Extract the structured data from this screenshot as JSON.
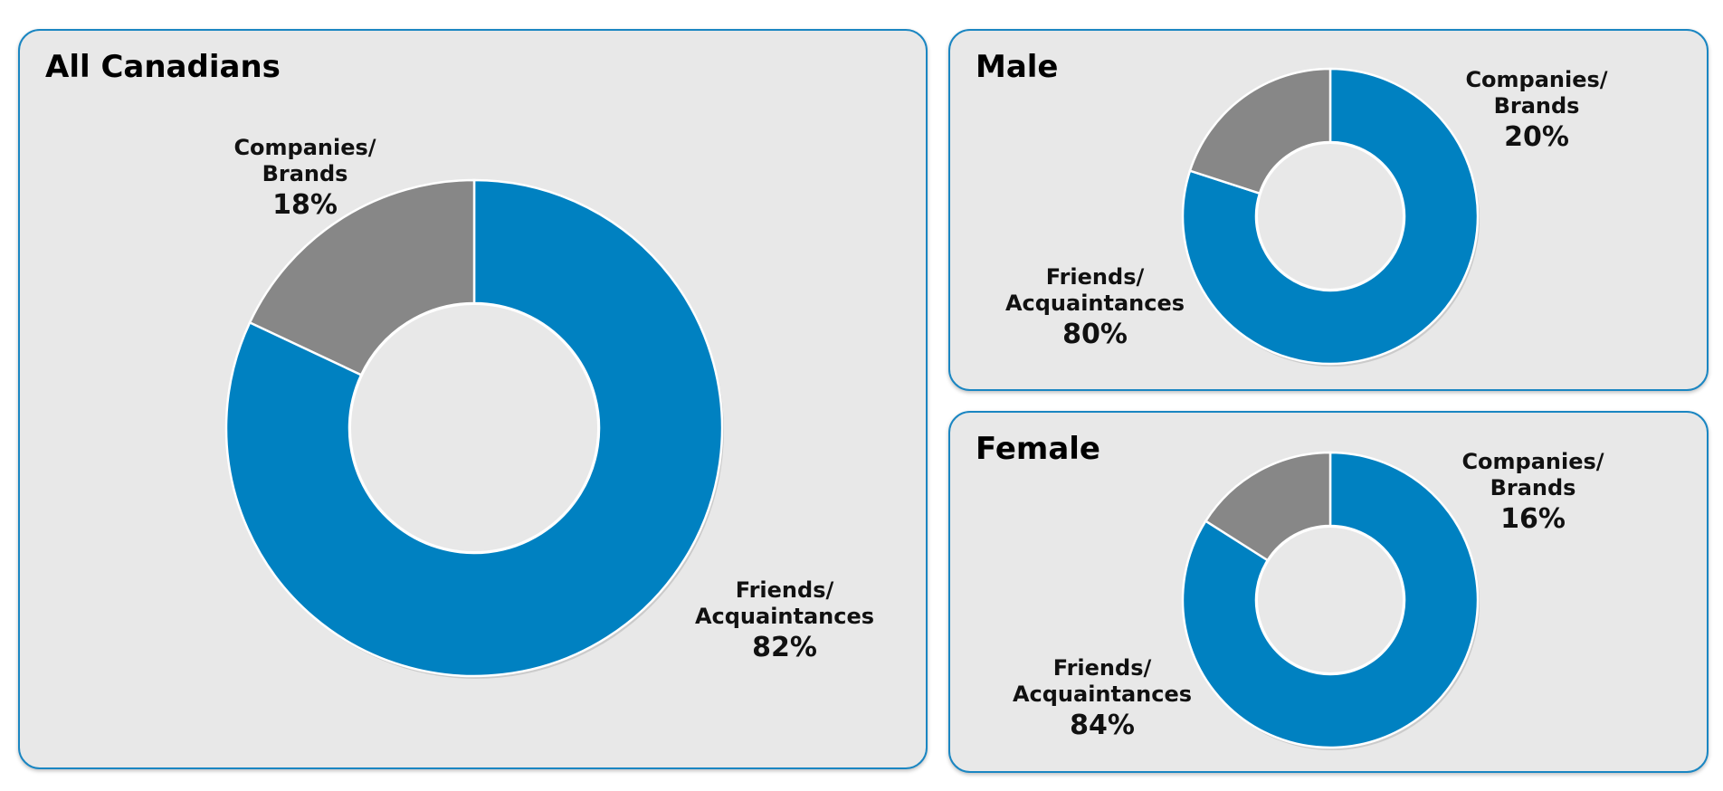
{
  "colors": {
    "friends": "#0081c1",
    "companies": "#878787",
    "border": "#1a86c2",
    "panel_bg": "#e8e8e8"
  },
  "chart_data": [
    {
      "type": "pie",
      "title": "All Canadians",
      "categories": [
        "Friends/ Acquaintances",
        "Companies/ Brands"
      ],
      "values": [
        82,
        18
      ],
      "labels": [
        {
          "line1": "Friends/",
          "line2": "Acquaintances",
          "pct": "82%"
        },
        {
          "line1": "Companies/",
          "line2": "Brands",
          "pct": "18%"
        }
      ]
    },
    {
      "type": "pie",
      "title": "Male",
      "categories": [
        "Friends/ Acquaintances",
        "Companies/ Brands"
      ],
      "values": [
        80,
        20
      ],
      "labels": [
        {
          "line1": "Friends/",
          "line2": "Acquaintances",
          "pct": "80%"
        },
        {
          "line1": "Companies/",
          "line2": "Brands",
          "pct": "20%"
        }
      ]
    },
    {
      "type": "pie",
      "title": "Female",
      "categories": [
        "Friends/ Acquaintances",
        "Companies/ Brands"
      ],
      "values": [
        84,
        16
      ],
      "labels": [
        {
          "line1": "Friends/",
          "line2": "Acquaintances",
          "pct": "84%"
        },
        {
          "line1": "Companies/",
          "line2": "Brands",
          "pct": "16%"
        }
      ]
    }
  ]
}
